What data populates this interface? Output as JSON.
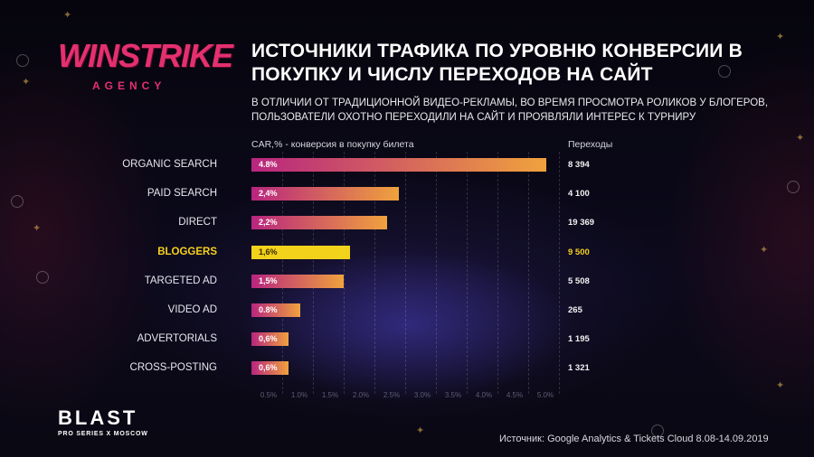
{
  "logo": {
    "main": "WINSTRIKE",
    "sub": "AGENCY"
  },
  "title": "ИСТОЧНИКИ ТРАФИКА ПО УРОВНЮ КОНВЕРСИИ В ПОКУПКУ И ЧИСЛУ ПЕРЕХОДОВ НА САЙТ",
  "subtitle": "В ОТЛИЧИИ ОТ ТРАДИЦИОННОЙ ВИДЕО-РЕКЛАМЫ, ВО ВРЕМЯ ПРОСМОТРА РОЛИКОВ У БЛОГЕРОВ, ПОЛЬЗОВАТЕЛИ ОХОТНО ПЕРЕХОДИЛИ НА САЙТ И ПРОЯВЛЯЛИ ИНТЕРЕС К ТУРНИРУ",
  "colors": {
    "bar_start": "#b8257f",
    "bar_end": "#f0a23d",
    "highlight": "#f2d21b",
    "brand": "#e4306f"
  },
  "chart_data": {
    "type": "bar",
    "orientation": "horizontal",
    "value_label": "CAR,% - конверсия в покупку билета",
    "secondary_label": "Переходы",
    "xlim": [
      0,
      5.0
    ],
    "ticks": [
      "0.5%",
      "1.0%",
      "1.5%",
      "2.0%",
      "2.5%",
      "3.0%",
      "3.5%",
      "4.0%",
      "4.5%",
      "5.0%"
    ],
    "highlighted": "BLOGGERS",
    "rows": [
      {
        "category": "ORGANIC SEARCH",
        "value": 4.8,
        "value_label": "4.8%",
        "visits": "8 394"
      },
      {
        "category": "PAID SEARCH",
        "value": 2.4,
        "value_label": "2,4%",
        "visits": "4 100"
      },
      {
        "category": "DIRECT",
        "value": 2.2,
        "value_label": "2,2%",
        "visits": "19 369"
      },
      {
        "category": "BLOGGERS",
        "value": 1.6,
        "value_label": "1,6%",
        "visits": "9 500"
      },
      {
        "category": "TARGETED AD",
        "value": 1.5,
        "value_label": "1,5%",
        "visits": "5 508"
      },
      {
        "category": "VIDEO AD",
        "value": 0.8,
        "value_label": "0.8%",
        "visits": "265"
      },
      {
        "category": "ADVERTORIALS",
        "value": 0.6,
        "value_label": "0,6%",
        "visits": "1 195"
      },
      {
        "category": "CROSS-POSTING",
        "value": 0.6,
        "value_label": "0,6%",
        "visits": "1 321"
      }
    ]
  },
  "footer": {
    "event_logo": "BLAST",
    "event_sub": "PRO SERIES X MOSCOW",
    "source": "Источник: Google Analytics & Tickets Cloud 8.08-14.09.2019"
  }
}
